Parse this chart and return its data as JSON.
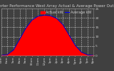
{
  "title": "Solar PV/Inverter Performance West Array Actual & Average Power Output",
  "legend_actual": "Actual kW",
  "legend_average": "Average kW",
  "actual_color": "#FF0000",
  "average_color": "#0000CC",
  "bg_color": "#404040",
  "plot_bg": "#404040",
  "grid_color": "white",
  "fill_color": "#FF0000",
  "fill_alpha": 1.0,
  "x_hours": [
    5,
    6,
    7,
    8,
    9,
    10,
    11,
    12,
    13,
    14,
    15,
    16,
    17,
    18,
    19,
    20
  ],
  "actual_power": [
    0.0,
    0.3,
    2.5,
    8.0,
    14.0,
    18.5,
    20.5,
    21.0,
    20.8,
    19.5,
    16.0,
    10.5,
    5.0,
    1.5,
    0.2,
    0.0
  ],
  "average_power": [
    0.0,
    0.4,
    2.8,
    8.5,
    14.5,
    18.8,
    21.0,
    21.5,
    21.2,
    19.8,
    16.5,
    11.0,
    5.5,
    1.8,
    0.3,
    0.0
  ],
  "ylim": [
    0,
    25
  ],
  "yticks": [
    0,
    5,
    10,
    15,
    20,
    25
  ],
  "ytick_labels": [
    "0",
    "5",
    "10",
    "15",
    "20",
    "25"
  ],
  "xlabel_labels": [
    "5am",
    "6am",
    "7am",
    "8am",
    "9am",
    "10am",
    "11am",
    "12pm",
    "1pm",
    "2pm",
    "3pm",
    "4pm",
    "5pm",
    "6pm",
    "7pm",
    "8pm"
  ],
  "title_fontsize": 4.0,
  "tick_fontsize": 3.2,
  "legend_fontsize": 3.5,
  "title_color": "#CCCCCC",
  "tick_color": "#CCCCCC",
  "legend_actual_color": "#FF0000",
  "legend_average_color": "#0000FF"
}
